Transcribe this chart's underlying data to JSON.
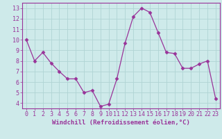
{
  "x": [
    0,
    1,
    2,
    3,
    4,
    5,
    6,
    7,
    8,
    9,
    10,
    11,
    12,
    13,
    14,
    15,
    16,
    17,
    18,
    19,
    20,
    21,
    22,
    23
  ],
  "y": [
    10.0,
    8.0,
    8.8,
    7.8,
    7.0,
    6.3,
    6.3,
    5.0,
    5.2,
    3.7,
    3.9,
    6.3,
    9.7,
    12.2,
    13.0,
    12.6,
    10.7,
    8.8,
    8.7,
    7.3,
    7.3,
    7.7,
    8.0,
    4.4
  ],
  "line_color": "#993399",
  "marker": "D",
  "marker_size": 2.5,
  "bg_color": "#ceeaea",
  "grid_color": "#b0d4d4",
  "axis_color": "#993399",
  "tick_color": "#993399",
  "xlabel": "Windchill (Refroidissement éolien,°C)",
  "ylabel": "",
  "xlim": [
    -0.5,
    23.5
  ],
  "ylim": [
    3.5,
    13.5
  ],
  "yticks": [
    4,
    5,
    6,
    7,
    8,
    9,
    10,
    11,
    12,
    13
  ],
  "xticks": [
    0,
    1,
    2,
    3,
    4,
    5,
    6,
    7,
    8,
    9,
    10,
    11,
    12,
    13,
    14,
    15,
    16,
    17,
    18,
    19,
    20,
    21,
    22,
    23
  ],
  "tick_fontsize": 6,
  "label_fontsize": 6.5
}
